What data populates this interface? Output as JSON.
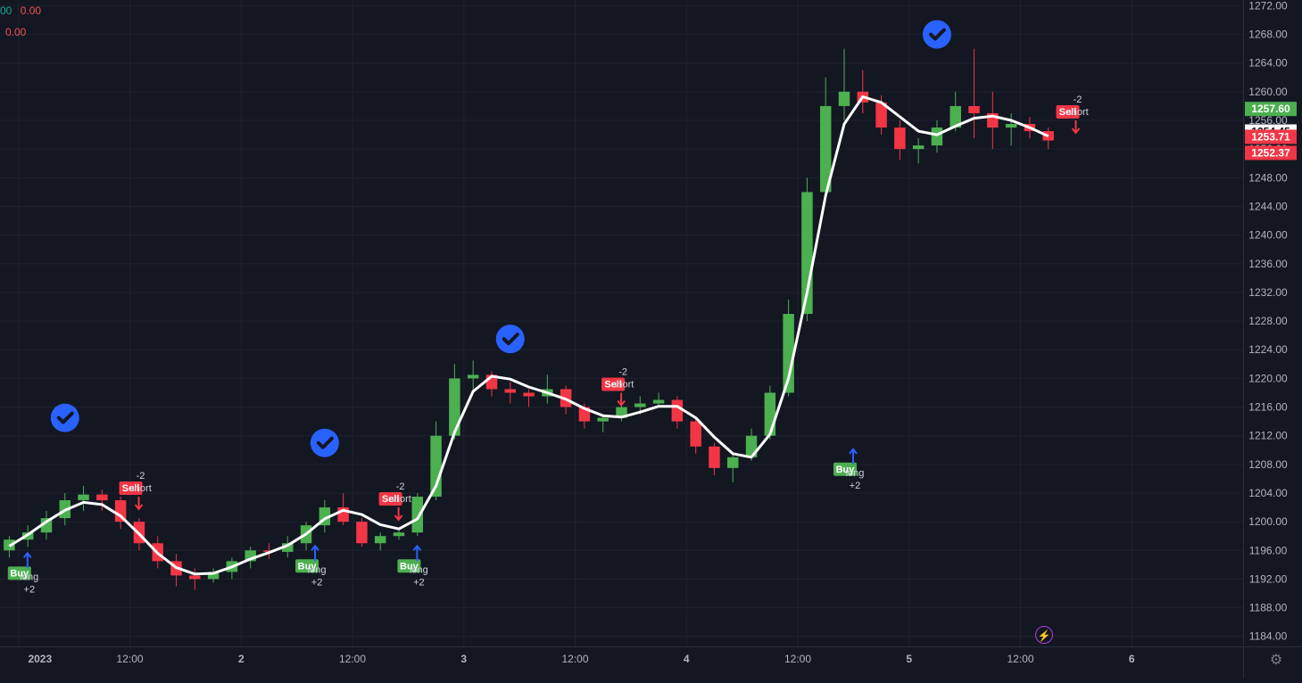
{
  "legend": {
    "line1": [
      "00",
      "0.00"
    ],
    "line2": [
      "0.00"
    ],
    "colors": {
      "up": "#26a69a",
      "down": "#ef5350",
      "white": "#ffffff"
    }
  },
  "icons": {
    "settings": "gear-icon",
    "alert": "lightning-icon",
    "checkmark": "check-circle-icon"
  },
  "colors": {
    "bg": "#131722",
    "grid": "#1e2230",
    "up": "#4caf50",
    "down": "#f23645",
    "ma": "#ffffff",
    "check": "#2962ff",
    "text": "#b2b5be"
  },
  "chart_data": {
    "type": "candlestick",
    "y_ticks": [
      "1272.00",
      "1268.00",
      "1264.00",
      "1260.00",
      "1256.00",
      "1252.00",
      "1248.00",
      "1244.00",
      "1240.00",
      "1236.00",
      "1232.00",
      "1228.00",
      "1224.00",
      "1220.00",
      "1216.00",
      "1212.00",
      "1208.00",
      "1204.00",
      "1200.00",
      "1196.00",
      "1192.00",
      "1188.00",
      "1184.00"
    ],
    "ylim": [
      1182.6,
      1272.8
    ],
    "x_ticks": [
      {
        "label": "2023",
        "x": 0.5
      },
      {
        "label": "12:00",
        "x": 6.5
      },
      {
        "label": "2",
        "x": 12.5
      },
      {
        "label": "12:00",
        "x": 18.5
      },
      {
        "label": "3",
        "x": 24.5
      },
      {
        "label": "12:00",
        "x": 30.5
      },
      {
        "label": "4",
        "x": 36.5
      },
      {
        "label": "12:00",
        "x": 42.5
      },
      {
        "label": "5",
        "x": 48.5
      },
      {
        "label": "12:00",
        "x": 54.5
      },
      {
        "label": "6",
        "x": 60.5
      }
    ],
    "xlim": [
      -0.5,
      66.5
    ],
    "candles": [
      [
        1196.0,
        1198.0,
        1195.0,
        1197.5
      ],
      [
        1197.5,
        1199.5,
        1196.5,
        1198.5
      ],
      [
        1198.5,
        1201.5,
        1197.5,
        1200.5
      ],
      [
        1200.5,
        1204.0,
        1199.5,
        1203.0
      ],
      [
        1203.0,
        1205.0,
        1201.5,
        1203.8
      ],
      [
        1203.8,
        1204.5,
        1201.5,
        1203.0
      ],
      [
        1203.0,
        1203.5,
        1199.0,
        1200.0
      ],
      [
        1200.0,
        1200.5,
        1196.0,
        1197.0
      ],
      [
        1197.0,
        1198.0,
        1193.5,
        1194.5
      ],
      [
        1194.5,
        1195.5,
        1191.0,
        1192.5
      ],
      [
        1192.5,
        1193.5,
        1190.5,
        1192.0
      ],
      [
        1192.0,
        1193.5,
        1191.5,
        1193.0
      ],
      [
        1193.0,
        1195.0,
        1192.0,
        1194.5
      ],
      [
        1194.5,
        1196.5,
        1193.5,
        1196.0
      ],
      [
        1196.0,
        1197.0,
        1194.8,
        1195.8
      ],
      [
        1195.8,
        1198.0,
        1195.0,
        1197.0
      ],
      [
        1197.0,
        1200.0,
        1196.0,
        1199.5
      ],
      [
        1199.5,
        1203.0,
        1198.5,
        1202.0
      ],
      [
        1202.0,
        1204.0,
        1199.5,
        1200.0
      ],
      [
        1200.0,
        1200.5,
        1196.5,
        1197.0
      ],
      [
        1197.0,
        1198.5,
        1196.0,
        1198.0
      ],
      [
        1198.0,
        1199.0,
        1197.5,
        1198.5
      ],
      [
        1198.5,
        1204.0,
        1198.0,
        1203.5
      ],
      [
        1203.5,
        1214.0,
        1203.0,
        1212.0
      ],
      [
        1212.0,
        1222.0,
        1211.5,
        1220.0
      ],
      [
        1220.0,
        1222.5,
        1218.0,
        1220.5
      ],
      [
        1220.5,
        1221.0,
        1217.5,
        1218.5
      ],
      [
        1218.5,
        1219.5,
        1216.5,
        1218.0
      ],
      [
        1218.0,
        1218.5,
        1216.0,
        1217.5
      ],
      [
        1217.5,
        1220.5,
        1216.5,
        1218.5
      ],
      [
        1218.5,
        1219.0,
        1215.0,
        1216.0
      ],
      [
        1216.0,
        1216.5,
        1213.0,
        1214.0
      ],
      [
        1214.0,
        1215.0,
        1212.5,
        1214.5
      ],
      [
        1214.5,
        1216.5,
        1214.0,
        1216.0
      ],
      [
        1216.0,
        1217.5,
        1215.0,
        1216.5
      ],
      [
        1216.5,
        1218.0,
        1216.0,
        1217.0
      ],
      [
        1217.0,
        1217.5,
        1213.0,
        1214.0
      ],
      [
        1214.0,
        1214.5,
        1209.5,
        1210.5
      ],
      [
        1210.5,
        1211.0,
        1206.5,
        1207.5
      ],
      [
        1207.5,
        1209.5,
        1205.5,
        1209.0
      ],
      [
        1209.0,
        1213.0,
        1208.5,
        1212.0
      ],
      [
        1212.0,
        1219.0,
        1211.5,
        1218.0
      ],
      [
        1218.0,
        1231.0,
        1217.5,
        1229.0
      ],
      [
        1229.0,
        1248.0,
        1228.0,
        1246.0
      ],
      [
        1246.0,
        1262.0,
        1245.0,
        1258.0
      ],
      [
        1258.0,
        1266.0,
        1256.0,
        1260.0
      ],
      [
        1260.0,
        1263.0,
        1257.0,
        1258.5
      ],
      [
        1258.5,
        1259.5,
        1254.0,
        1255.0
      ],
      [
        1255.0,
        1256.0,
        1250.5,
        1252.0
      ],
      [
        1252.0,
        1253.5,
        1250.0,
        1252.5
      ],
      [
        1252.5,
        1256.0,
        1251.5,
        1255.0
      ],
      [
        1255.0,
        1260.0,
        1254.5,
        1258.0
      ],
      [
        1258.0,
        1266.0,
        1253.5,
        1257.0
      ],
      [
        1257.0,
        1260.0,
        1252.0,
        1255.0
      ],
      [
        1255.0,
        1257.0,
        1252.5,
        1255.5
      ],
      [
        1255.5,
        1256.5,
        1253.5,
        1254.5
      ],
      [
        1254.5,
        1255.0,
        1252.0,
        1253.2
      ]
    ],
    "ma_line": [
      1196.6,
      1198.2,
      1200.0,
      1201.6,
      1202.7,
      1202.4,
      1200.8,
      1198.3,
      1195.6,
      1193.6,
      1192.7,
      1192.8,
      1193.7,
      1194.8,
      1195.7,
      1196.7,
      1198.3,
      1200.4,
      1201.6,
      1201.0,
      1199.6,
      1199.0,
      1200.4,
      1205.0,
      1212.5,
      1218.2,
      1220.3,
      1219.9,
      1218.8,
      1218.0,
      1217.1,
      1215.8,
      1214.8,
      1214.6,
      1215.3,
      1216.1,
      1216.1,
      1214.5,
      1211.8,
      1209.5,
      1209.0,
      1212.2,
      1220.0,
      1232.0,
      1245.5,
      1255.5,
      1259.3,
      1258.5,
      1256.5,
      1254.5,
      1254.0,
      1255.2,
      1256.3,
      1256.6,
      1256.0,
      1255.0,
      1253.8
    ],
    "price_labels": [
      {
        "text": "1257.60",
        "value": 1257.6,
        "bg": "#4caf50",
        "fg": "#ffffff"
      },
      {
        "text": "1254.45",
        "value": 1254.45,
        "bg": "#ffffff",
        "fg": "#131722"
      },
      {
        "text": "1253.71",
        "value": 1253.71,
        "bg": "#f23645",
        "fg": "#ffffff"
      },
      {
        "text": "1252.37",
        "value": 1252.37,
        "bg": "#f23645",
        "fg": "#ffffff"
      }
    ],
    "checkmarks": [
      {
        "x": 3,
        "value": 1214.5
      },
      {
        "x": 17,
        "value": 1211.0
      },
      {
        "x": 27,
        "value": 1225.5
      },
      {
        "x": 50,
        "value": 1268.0
      }
    ],
    "signals": [
      {
        "type": "buy",
        "x": 0.5,
        "value": 1195.0,
        "label": "Buy",
        "order": "long",
        "qty": "+2"
      },
      {
        "type": "sell",
        "x": 6.5,
        "value": 1204.0,
        "label": "Sell",
        "order": "short",
        "qty": "-2"
      },
      {
        "type": "buy",
        "x": 16,
        "value": 1196.0,
        "label": "Buy",
        "order": "long",
        "qty": "+2"
      },
      {
        "type": "sell",
        "x": 20.5,
        "value": 1202.5,
        "label": "Sell",
        "order": "short",
        "qty": "-2"
      },
      {
        "type": "buy",
        "x": 21.5,
        "value": 1196.0,
        "label": "Buy",
        "order": "long",
        "qty": "+2"
      },
      {
        "type": "sell",
        "x": 32.5,
        "value": 1218.5,
        "label": "Sell",
        "order": "short",
        "qty": "-2"
      },
      {
        "type": "buy",
        "x": 45,
        "value": 1209.5,
        "label": "Buy",
        "order": "long",
        "qty": "+2"
      },
      {
        "type": "sell",
        "x": 57,
        "value": 1256.5,
        "label": "Sell",
        "order": "short",
        "qty": "-2"
      }
    ]
  }
}
